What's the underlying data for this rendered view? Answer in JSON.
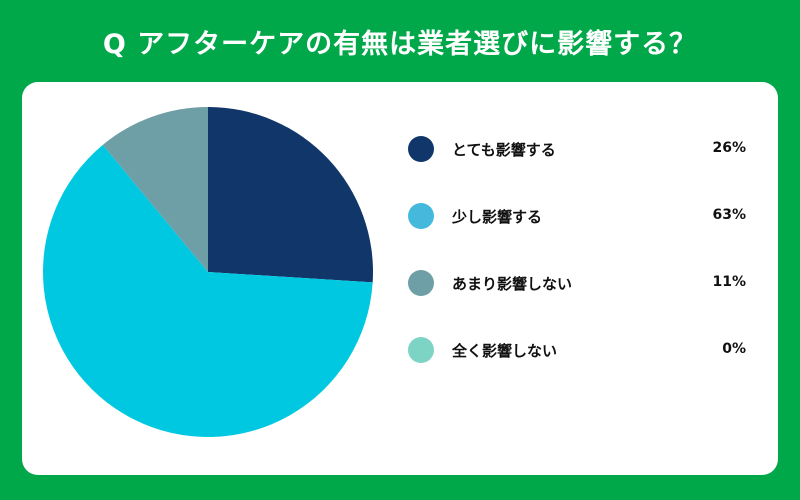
{
  "chart_data": {
    "type": "pie",
    "title": "Q アフターケアの有無は業者選びに影響する？",
    "categories": [
      "とても影響する",
      "少し影響する",
      "あまり影響しない",
      "全く影響しない"
    ],
    "values": [
      26,
      63,
      11,
      0
    ],
    "value_labels": [
      "26%",
      "63%",
      "11%",
      "0%"
    ],
    "colors": [
      "#10366a",
      "#00c8e0",
      "#6e9fa6",
      "#7dd4c4"
    ],
    "legend_colors": [
      "#10366a",
      "#45b9db",
      "#6e9fa6",
      "#7dd4c4"
    ],
    "start": "top",
    "direction": "clockwise",
    "legend_placement": "right"
  },
  "colors": {
    "background": "#00a84a",
    "card": "#ffffff"
  }
}
